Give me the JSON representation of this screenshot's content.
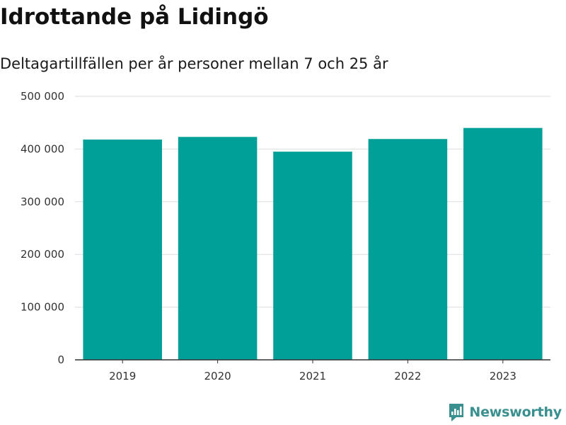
{
  "title": "Idrottande på Lidingö",
  "subtitle": "Deltagartillfällen per år personer mellan 7 och 25 år",
  "brand": {
    "name": "Newsworthy",
    "color": "#3a8f8f",
    "icon": "bar-chart-speech-bubble-icon"
  },
  "colors": {
    "bar": "#00a098",
    "grid": "#dddddd",
    "axis": "#333333"
  },
  "chart_data": {
    "type": "bar",
    "title": "Idrottande på Lidingö",
    "subtitle": "Deltagartillfällen per år personer mellan 7 och 25 år",
    "xlabel": "",
    "ylabel": "",
    "categories": [
      "2019",
      "2020",
      "2021",
      "2022",
      "2023"
    ],
    "values": [
      418000,
      423000,
      395000,
      419000,
      440000
    ],
    "ylim": [
      0,
      500000
    ],
    "yticks": [
      0,
      100000,
      200000,
      300000,
      400000,
      500000
    ],
    "ytick_labels": [
      "0",
      "100 000",
      "200 000",
      "300 000",
      "400 000",
      "500 000"
    ],
    "grid": true,
    "legend": "none"
  }
}
